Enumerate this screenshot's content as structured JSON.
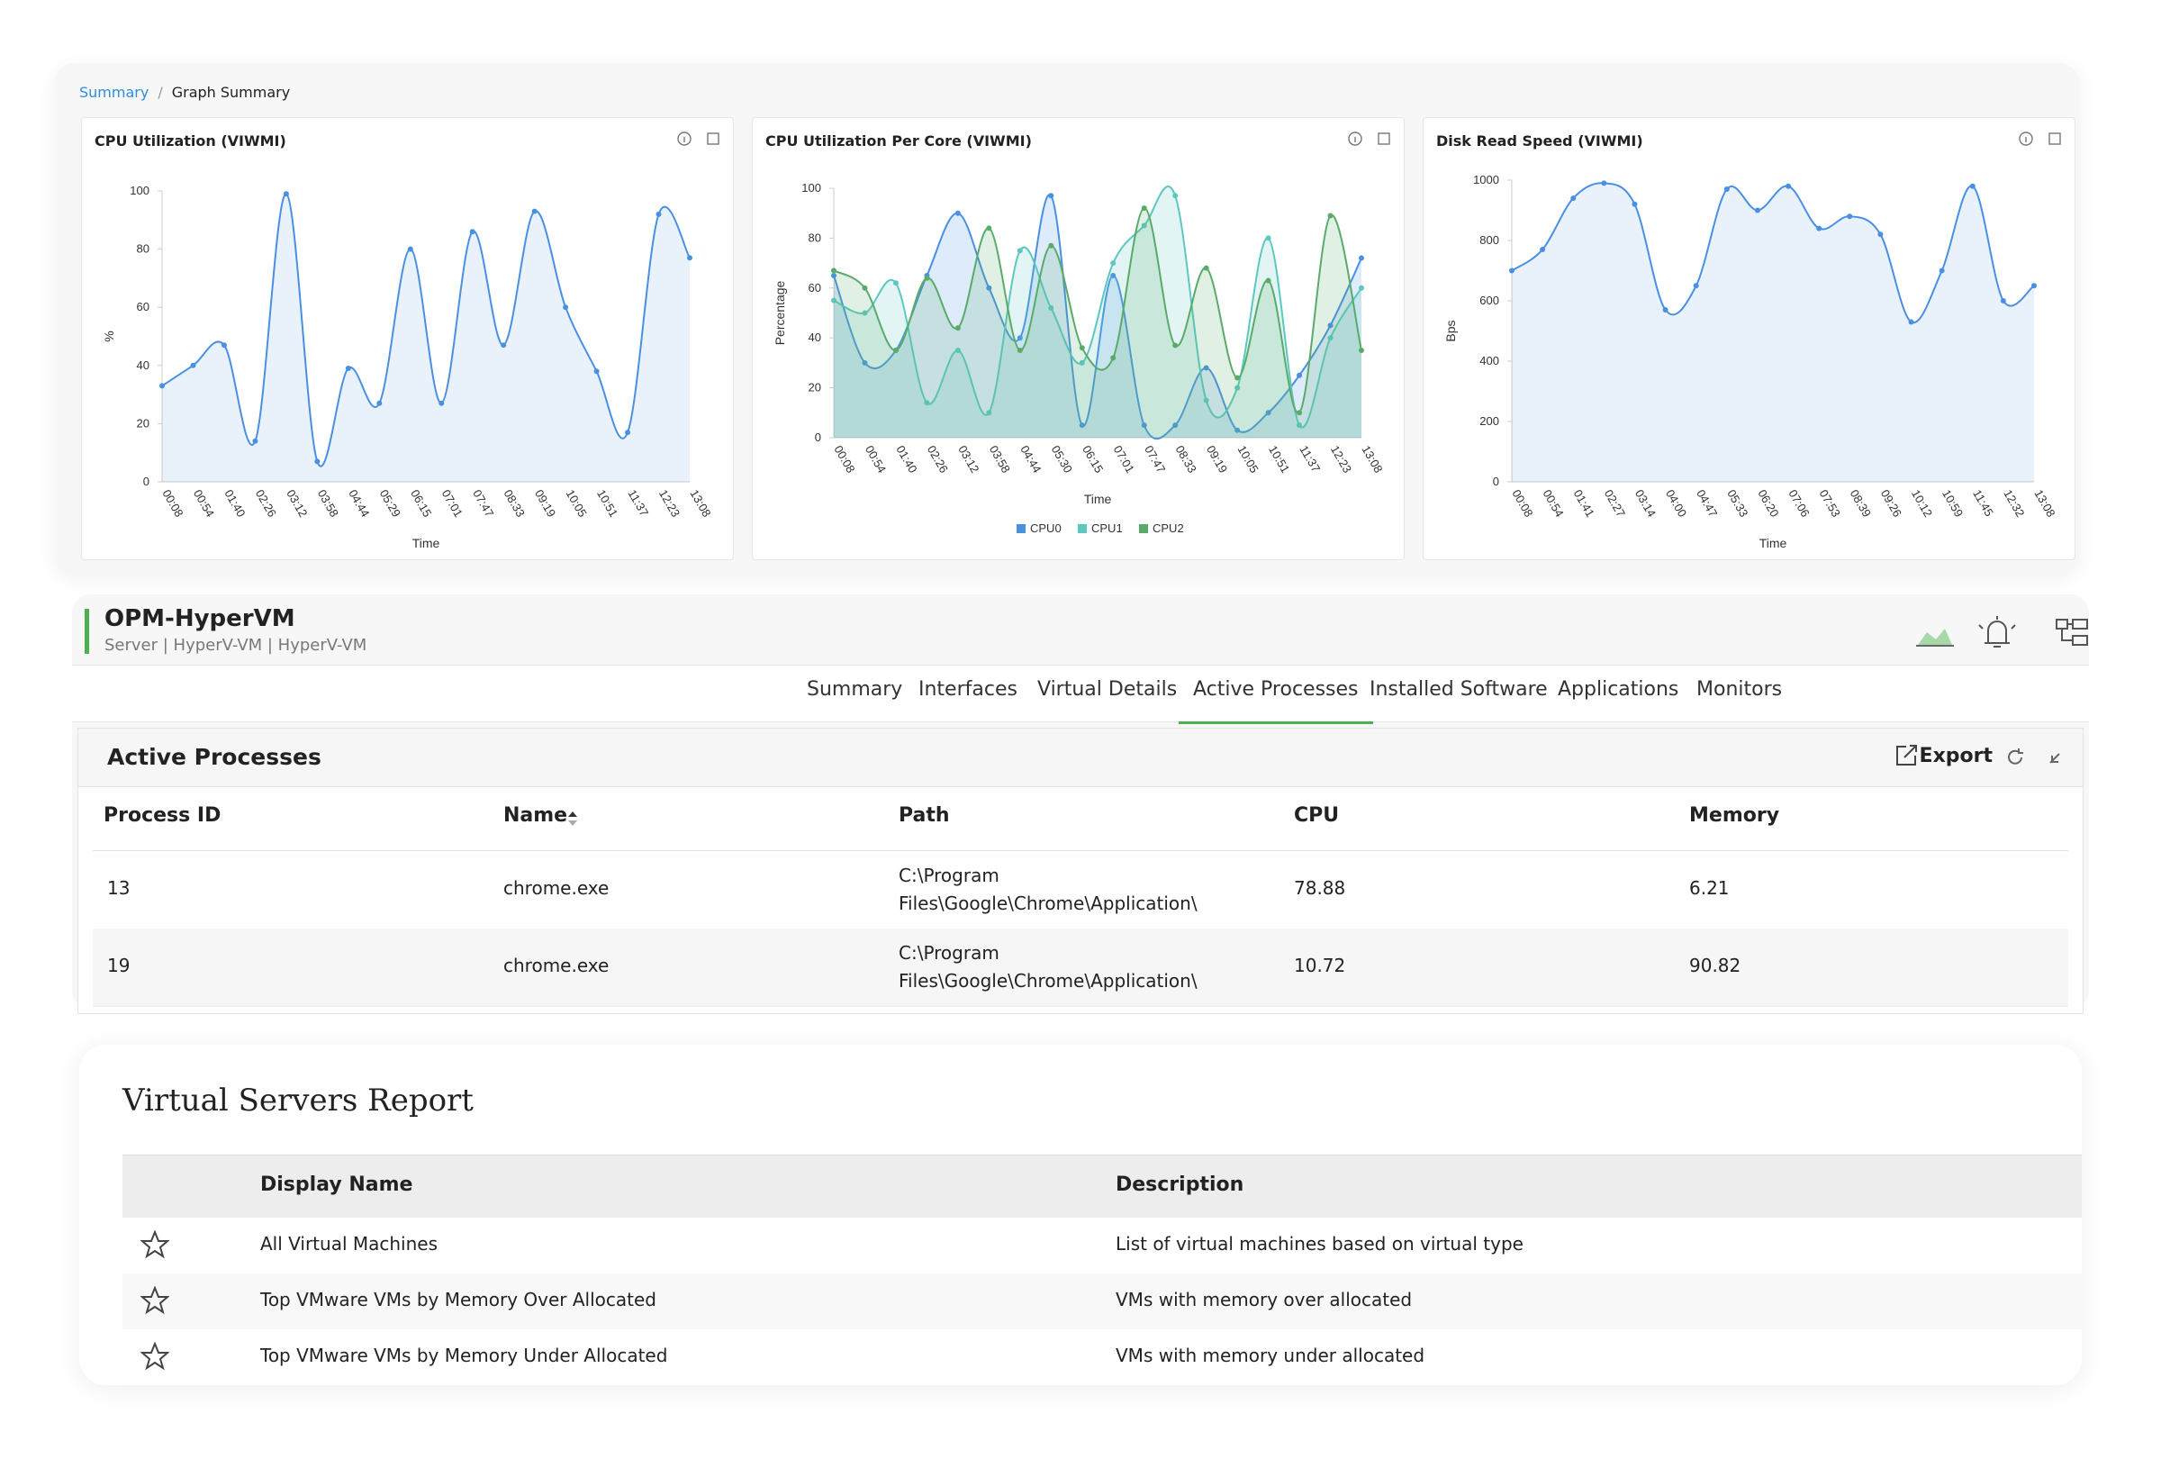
{
  "breadcrumb": [
    "Summary",
    "Graph Summary"
  ],
  "chart_data": [
    {
      "type": "line",
      "title": "CPU Utilization (VIWMI)",
      "x_label": "Time",
      "y_label": "%",
      "categories": [
        "00:08",
        "00:54",
        "01:40",
        "02:26",
        "03:12",
        "03:58",
        "04:44",
        "05:29",
        "06:15",
        "07:01",
        "07:47",
        "08:33",
        "09:19",
        "10:05",
        "10:51",
        "11:37",
        "12:23",
        "13:08"
      ],
      "values": [
        33,
        40,
        47,
        14,
        99,
        7,
        39,
        27,
        80,
        27,
        86,
        47,
        93,
        60,
        38,
        17,
        92,
        77
      ],
      "color": "#4a90e2",
      "ylim": [
        0,
        100
      ],
      "yticks": [
        0,
        20,
        40,
        60,
        80,
        100
      ],
      "grid": false
    },
    {
      "type": "line",
      "title": "CPU Utilization Per Core (VIWMI)",
      "x_label": "Time",
      "y_label": "Percentage",
      "categories": [
        "00:08",
        "00:54",
        "01:40",
        "02:26",
        "03:12",
        "03:58",
        "04:44",
        "05:30",
        "06:15",
        "07:01",
        "07:47",
        "08:33",
        "09:19",
        "10:05",
        "10:51",
        "11:37",
        "12:23",
        "13:08"
      ],
      "series": [
        {
          "name": "CPU0",
          "color": "#4a90e2",
          "values": [
            65,
            30,
            35,
            65,
            90,
            60,
            40,
            97,
            5,
            65,
            5,
            5,
            28,
            3,
            10,
            25,
            45,
            72
          ]
        },
        {
          "name": "CPU1",
          "color": "#5cc8c0",
          "values": [
            55,
            50,
            62,
            14,
            35,
            10,
            75,
            52,
            30,
            70,
            85,
            97,
            15,
            20,
            80,
            5,
            40,
            60
          ]
        },
        {
          "name": "CPU2",
          "color": "#5aab6a",
          "values": [
            67,
            60,
            35,
            64,
            44,
            84,
            35,
            77,
            36,
            32,
            92,
            37,
            68,
            24,
            63,
            10,
            89,
            35
          ]
        }
      ],
      "ylim": [
        0,
        100
      ],
      "yticks": [
        0,
        20,
        40,
        60,
        80,
        100
      ],
      "grid": false,
      "legend": "bottom"
    },
    {
      "type": "line",
      "title": "Disk Read Speed (VIWMI)",
      "x_label": "Time",
      "y_label": "Bps",
      "categories": [
        "00:08",
        "00:54",
        "01:41",
        "02:27",
        "03:14",
        "04:00",
        "04:47",
        "05:33",
        "06:20",
        "07:06",
        "07:53",
        "08:39",
        "09:26",
        "10:12",
        "10:59",
        "11:45",
        "12:32",
        "13:08"
      ],
      "values": [
        700,
        770,
        940,
        990,
        920,
        570,
        650,
        970,
        900,
        980,
        840,
        880,
        820,
        530,
        700,
        980,
        600,
        650
      ],
      "color": "#4a90e2",
      "ylim": [
        0,
        1000
      ],
      "yticks": [
        0,
        200,
        400,
        600,
        800,
        1000
      ],
      "grid": false
    }
  ],
  "device": {
    "name": "OPM-HyperVM",
    "subtitle": "Server | HyperV-VM  | HyperV-VM"
  },
  "tabs": [
    "Summary",
    "Interfaces",
    "Virtual Details",
    "Active Processes",
    "Installed Software",
    "Applications",
    "Monitors"
  ],
  "active_tab": 3,
  "processes": {
    "title": "Active Processes",
    "export": "Export",
    "columns": [
      "Process ID",
      "Name",
      "Path",
      "CPU",
      "Memory"
    ],
    "rows": [
      [
        13,
        "chrome.exe",
        "C:\\Program Files\\Google\\Chrome\\Application\\",
        78.88,
        6.21
      ],
      [
        19,
        "chrome.exe",
        "C:\\Program Files\\Google\\Chrome\\Application\\",
        10.72,
        90.82
      ]
    ]
  },
  "report": {
    "title": "Virtual Servers Report",
    "columns": [
      "Display Name",
      "Description"
    ],
    "rows": [
      [
        "All Virtual Machines",
        "List of virtual machines based on virtual type"
      ],
      [
        "Top VMware VMs by Memory Over Allocated",
        "VMs with memory over allocated"
      ],
      [
        "Top VMware VMs by Memory Under Allocated",
        "VMs with memory under allocated"
      ]
    ]
  }
}
